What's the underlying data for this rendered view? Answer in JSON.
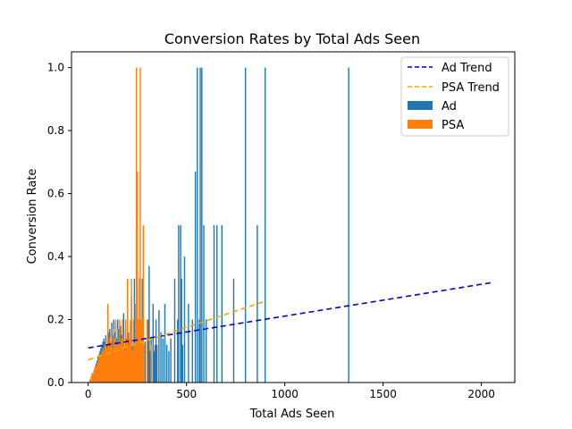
{
  "chart_data": {
    "type": "bar",
    "title": "Conversion Rates by Total Ads Seen",
    "xlabel": "Total Ads Seen",
    "ylabel": "Conversion Rate",
    "xlim": [
      -85,
      2170
    ],
    "ylim": [
      0,
      1.05
    ],
    "x_ticks": [
      0,
      500,
      1000,
      1500,
      2000
    ],
    "y_ticks": [
      0.0,
      0.2,
      0.4,
      0.6,
      0.8,
      1.0
    ],
    "grid": false,
    "legend_position": "top-right",
    "legend": [
      {
        "label": "Ad Trend",
        "kind": "dashed-line",
        "color": "#0000cc"
      },
      {
        "label": "PSA Trend",
        "kind": "dashed-line",
        "color": "#ffa500"
      },
      {
        "label": "Ad",
        "kind": "bar",
        "color": "#1f77b4"
      },
      {
        "label": "PSA",
        "kind": "bar",
        "color": "#ff7f0e"
      }
    ],
    "series": [
      {
        "name": "Ad",
        "type": "bar",
        "color": "#1f77b4",
        "points": [
          [
            10,
            0.01
          ],
          [
            20,
            0.02
          ],
          [
            25,
            0.03
          ],
          [
            30,
            0.04
          ],
          [
            35,
            0.05
          ],
          [
            40,
            0.06
          ],
          [
            45,
            0.07
          ],
          [
            50,
            0.08
          ],
          [
            55,
            0.09
          ],
          [
            60,
            0.1
          ],
          [
            65,
            0.11
          ],
          [
            70,
            0.12
          ],
          [
            75,
            0.13
          ],
          [
            80,
            0.14
          ],
          [
            85,
            0.13
          ],
          [
            90,
            0.15
          ],
          [
            95,
            0.12
          ],
          [
            100,
            0.14
          ],
          [
            105,
            0.16
          ],
          [
            110,
            0.17
          ],
          [
            115,
            0.13
          ],
          [
            120,
            0.19
          ],
          [
            125,
            0.15
          ],
          [
            130,
            0.2
          ],
          [
            135,
            0.16
          ],
          [
            140,
            0.19
          ],
          [
            145,
            0.14
          ],
          [
            150,
            0.2
          ],
          [
            155,
            0.17
          ],
          [
            160,
            0.13
          ],
          [
            165,
            0.18
          ],
          [
            170,
            0.15
          ],
          [
            175,
            0.12
          ],
          [
            180,
            0.22
          ],
          [
            185,
            0.11
          ],
          [
            190,
            0.17
          ],
          [
            195,
            0.14
          ],
          [
            200,
            0.13
          ],
          [
            205,
            0.16
          ],
          [
            210,
            0.12
          ],
          [
            215,
            0.18
          ],
          [
            220,
            0.27
          ],
          [
            225,
            0.12
          ],
          [
            230,
            0.15
          ],
          [
            235,
            0.33
          ],
          [
            240,
            0.1
          ],
          [
            245,
            0.11
          ],
          [
            250,
            0.31
          ],
          [
            255,
            0.2
          ],
          [
            260,
            0.14
          ],
          [
            265,
            0.12
          ],
          [
            270,
            0.18
          ],
          [
            275,
            0.33
          ],
          [
            280,
            0.12
          ],
          [
            290,
            0.13
          ],
          [
            300,
            0.14
          ],
          [
            305,
            0.2
          ],
          [
            310,
            0.37
          ],
          [
            315,
            0.1
          ],
          [
            320,
            0.14
          ],
          [
            330,
            0.25
          ],
          [
            335,
            0.1
          ],
          [
            340,
            0.12
          ],
          [
            345,
            0.2
          ],
          [
            350,
            0.12
          ],
          [
            360,
            0.23
          ],
          [
            370,
            0.16
          ],
          [
            380,
            0.14
          ],
          [
            390,
            0.25
          ],
          [
            400,
            0.12
          ],
          [
            410,
            0.1
          ],
          [
            420,
            0.14
          ],
          [
            440,
            0.33
          ],
          [
            455,
            0.2
          ],
          [
            460,
            0.5
          ],
          [
            470,
            0.5
          ],
          [
            475,
            0.33
          ],
          [
            480,
            0.12
          ],
          [
            490,
            0.4
          ],
          [
            510,
            0.25
          ],
          [
            530,
            0.2
          ],
          [
            545,
            0.67
          ],
          [
            555,
            1.0
          ],
          [
            565,
            0.2
          ],
          [
            570,
            1.0
          ],
          [
            578,
            1.0
          ],
          [
            588,
            0.5
          ],
          [
            600,
            0.2
          ],
          [
            640,
            0.5
          ],
          [
            655,
            0.5
          ],
          [
            680,
            0.5
          ],
          [
            740,
            0.33
          ],
          [
            800,
            1.0
          ],
          [
            860,
            0.5
          ],
          [
            900,
            1.0
          ],
          [
            1325,
            1.0
          ]
        ]
      },
      {
        "name": "PSA",
        "type": "bar",
        "color": "#ff7f0e",
        "points": [
          [
            10,
            0.01
          ],
          [
            15,
            0.02
          ],
          [
            20,
            0.03
          ],
          [
            25,
            0.03
          ],
          [
            30,
            0.04
          ],
          [
            35,
            0.05
          ],
          [
            40,
            0.05
          ],
          [
            45,
            0.06
          ],
          [
            50,
            0.07
          ],
          [
            55,
            0.08
          ],
          [
            60,
            0.09
          ],
          [
            65,
            0.09
          ],
          [
            70,
            0.1
          ],
          [
            75,
            0.11
          ],
          [
            80,
            0.1
          ],
          [
            85,
            0.12
          ],
          [
            90,
            0.13
          ],
          [
            95,
            0.11
          ],
          [
            100,
            0.25
          ],
          [
            105,
            0.12
          ],
          [
            110,
            0.14
          ],
          [
            115,
            0.13
          ],
          [
            120,
            0.15
          ],
          [
            125,
            0.11
          ],
          [
            130,
            0.17
          ],
          [
            135,
            0.14
          ],
          [
            140,
            0.2
          ],
          [
            145,
            0.12
          ],
          [
            150,
            0.17
          ],
          [
            155,
            0.13
          ],
          [
            160,
            0.2
          ],
          [
            165,
            0.12
          ],
          [
            170,
            0.14
          ],
          [
            175,
            0.2
          ],
          [
            180,
            0.14
          ],
          [
            185,
            0.1
          ],
          [
            190,
            0.2
          ],
          [
            195,
            0.13
          ],
          [
            200,
            0.33
          ],
          [
            205,
            0.12
          ],
          [
            210,
            0.14
          ],
          [
            215,
            0.2
          ],
          [
            220,
            0.33
          ],
          [
            225,
            0.1
          ],
          [
            230,
            0.2
          ],
          [
            235,
            0.12
          ],
          [
            240,
            0.25
          ],
          [
            245,
            1.0
          ],
          [
            250,
            0.67
          ],
          [
            255,
            0.2
          ],
          [
            260,
            0.33
          ],
          [
            265,
            1.0
          ],
          [
            270,
            0.2
          ],
          [
            275,
            0.2
          ],
          [
            280,
            0.5
          ],
          [
            285,
            0.12
          ],
          [
            300,
            0.2
          ],
          [
            320,
            0.12
          ]
        ]
      },
      {
        "name": "Ad Trend",
        "type": "line",
        "style": "dashed",
        "color": "#0000cc",
        "points": [
          [
            0,
            0.11
          ],
          [
            2060,
            0.318
          ]
        ]
      },
      {
        "name": "PSA Trend",
        "type": "line",
        "style": "dashed",
        "color": "#ffa500",
        "points": [
          [
            0,
            0.072
          ],
          [
            900,
            0.258
          ]
        ]
      }
    ]
  }
}
